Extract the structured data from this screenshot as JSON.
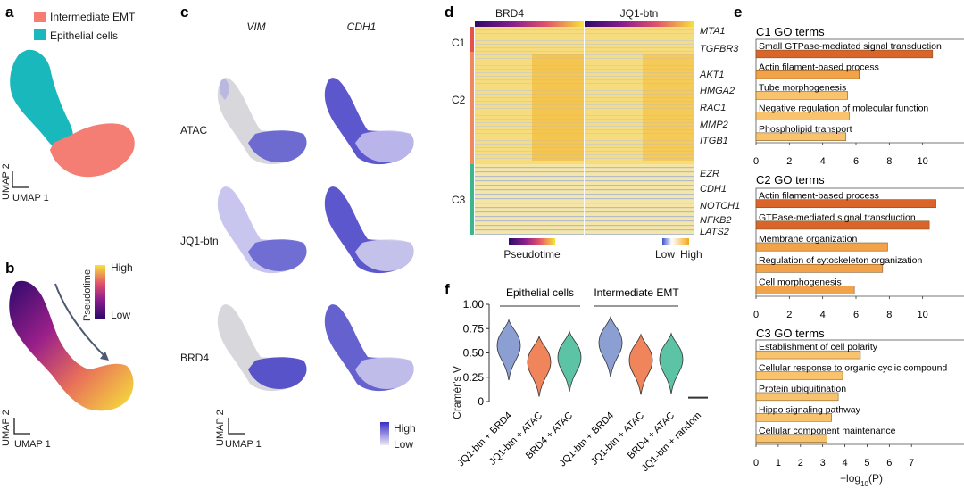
{
  "panels": {
    "a": "a",
    "b": "b",
    "c": "c",
    "d": "d",
    "e": "e",
    "f": "f"
  },
  "panel_a": {
    "legend": [
      "Intermediate EMT",
      "Epithelial cells"
    ],
    "legend_colors": [
      "#f47d74",
      "#18b8bd"
    ],
    "axis_y": "UMAP 2",
    "axis_x": "UMAP 1"
  },
  "panel_b": {
    "colorbar_title": "Pseudotime",
    "colorbar_high": "High",
    "colorbar_low": "Low",
    "axis_y": "UMAP 2",
    "axis_x": "UMAP 1"
  },
  "panel_c": {
    "columns": [
      "VIM",
      "CDH1"
    ],
    "rows": [
      "ATAC",
      "JQ1-btn",
      "BRD4"
    ],
    "axis_y": "UMAP 2",
    "axis_x": "UMAP 1",
    "legend_high": "High",
    "legend_low": "Low"
  },
  "panel_d": {
    "columns": [
      "BRD4",
      "JQ1-btn"
    ],
    "clusters": [
      "C1",
      "C2",
      "C3"
    ],
    "cluster_colors": [
      "#e8504a",
      "#f08a5d",
      "#3fb58b"
    ],
    "genes": [
      "MTA1",
      "TGFBR3",
      "AKT1",
      "HMGA2",
      "RAC1",
      "MMP2",
      "ITGB1",
      "EZR",
      "CDH1",
      "NOTCH1",
      "NFKB2",
      "LATS2"
    ],
    "pseudotime_label": "Pseudotime",
    "scale_low": "Low",
    "scale_high": "High"
  },
  "panel_e": {
    "xlabel_prefix": "−log",
    "xlabel_sub": "10",
    "xlabel_suffix": "(P)",
    "groups": [
      {
        "title": "C1 GO terms",
        "terms": [
          "Small GTPase-mediated signal transduction",
          "Actin filament-based process",
          "Tube morphogenesis",
          "Negative regulation of molecular function",
          "Phospholipid transport"
        ],
        "values": [
          10.6,
          6.2,
          5.5,
          5.6,
          5.4
        ],
        "colors": [
          "#d9652a",
          "#f2a34a",
          "#f8c36c",
          "#f8c36c",
          "#f8c36c"
        ],
        "ticks": [
          "0",
          "2",
          "4",
          "6",
          "8",
          "10"
        ],
        "xmax": 12
      },
      {
        "title": "C2 GO terms",
        "terms": [
          "Actin filament-based process",
          "GTPase-mediated signal transduction",
          "Membrane organization",
          "Regulation of cytoskeleton organization",
          "Cell morphogenesis"
        ],
        "values": [
          10.8,
          10.4,
          7.9,
          7.6,
          5.9
        ],
        "colors": [
          "#d9652a",
          "#d9652a",
          "#f2a34a",
          "#f2a34a",
          "#f2a34a"
        ],
        "ticks": [
          "0",
          "2",
          "4",
          "6",
          "8",
          "10"
        ],
        "xmax": 12
      },
      {
        "title": "C3 GO terms",
        "terms": [
          "Establishment of cell polarity",
          "Cellular response to organic cyclic compound",
          "Protein ubiquitination",
          "Hippo signaling pathway",
          "Cellular component maintenance"
        ],
        "values": [
          4.7,
          3.9,
          3.7,
          3.4,
          3.2
        ],
        "colors": [
          "#f8c36c",
          "#f8c36c",
          "#f8c36c",
          "#f8c36c",
          "#f8c36c"
        ],
        "ticks": [
          "0",
          "1",
          "2",
          "3",
          "4",
          "5",
          "6",
          "7"
        ],
        "xmax": 9
      }
    ]
  },
  "chart_data": {
    "type": "violin",
    "ylabel": "Cramér's V",
    "ylim": [
      0,
      1.0
    ],
    "yticks": [
      "0",
      "0.25",
      "0.50",
      "0.75",
      "1.00"
    ],
    "groups": [
      "Epithelial cells",
      "Intermediate EMT"
    ],
    "categories": [
      "JQ1-btn + BRD4",
      "JQ1-btn + ATAC",
      "BRD4 + ATAC",
      "JQ1-btn + BRD4",
      "JQ1-btn + ATAC",
      "BRD4 + ATAC",
      "JQ1-btn + random"
    ],
    "medians": [
      0.57,
      0.4,
      0.45,
      0.6,
      0.42,
      0.43,
      0.04
    ],
    "colors": [
      "#8b9fd2",
      "#f0845a",
      "#5cc4a4",
      "#8b9fd2",
      "#f0845a",
      "#5cc4a4",
      "#333333"
    ]
  }
}
